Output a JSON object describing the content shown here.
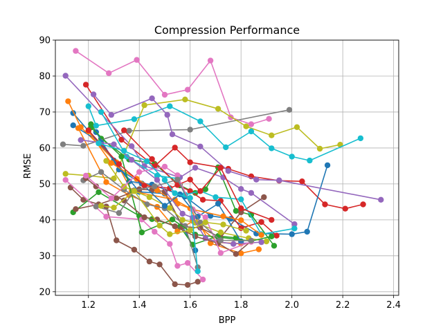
{
  "chart_data": {
    "type": "line",
    "title": "Compression Performance",
    "xlabel": "BPP",
    "ylabel": "RMSE",
    "xlim": [
      1.07,
      2.42
    ],
    "ylim": [
      19,
      90
    ],
    "xticks": [
      1.2,
      1.4,
      1.6,
      1.8,
      2.0,
      2.2,
      2.4
    ],
    "yticks": [
      20,
      30,
      40,
      50,
      60,
      70,
      80,
      90
    ],
    "xtick_labels": [
      "1.2",
      "1.4",
      "1.6",
      "1.8",
      "2.0",
      "2.2",
      "2.4"
    ],
    "ytick_labels": [
      "20",
      "30",
      "40",
      "50",
      "60",
      "70",
      "80",
      "90"
    ],
    "grid": true,
    "legend": "none",
    "series": [
      {
        "color": "#1f77b4",
        "points": [
          [
            1.14,
            69.7
          ],
          [
            1.3,
            56.5
          ],
          [
            1.4,
            47.8
          ],
          [
            1.5,
            47.3
          ],
          [
            1.62,
            31.5
          ]
        ]
      },
      {
        "color": "#ff7f0e",
        "points": [
          [
            1.12,
            73.0
          ],
          [
            1.17,
            65.8
          ],
          [
            1.31,
            56.0
          ],
          [
            1.37,
            48.0
          ],
          [
            1.54,
            45.6
          ],
          [
            1.6,
            43.2
          ],
          [
            1.68,
            33.5
          ],
          [
            1.8,
            30.7
          ],
          [
            1.87,
            31.8
          ]
        ]
      },
      {
        "color": "#2ca02c",
        "points": [
          [
            1.21,
            66.6
          ],
          [
            1.25,
            62.6
          ],
          [
            1.36,
            56.8
          ],
          [
            1.46,
            55.6
          ],
          [
            1.56,
            49.6
          ],
          [
            1.62,
            47.5
          ],
          [
            1.66,
            48.5
          ],
          [
            1.71,
            54.6
          ],
          [
            1.78,
            42.5
          ],
          [
            1.84,
            41.4
          ],
          [
            1.93,
            32.8
          ]
        ]
      },
      {
        "color": "#d62728",
        "points": [
          [
            1.19,
            77.6
          ],
          [
            1.33,
            62.3
          ],
          [
            1.46,
            54.9
          ],
          [
            1.54,
            60.1
          ],
          [
            1.6,
            56.0
          ],
          [
            1.75,
            54.2
          ],
          [
            1.84,
            52.1
          ],
          [
            1.95,
            50.9
          ],
          [
            2.04,
            50.7
          ],
          [
            2.13,
            44.3
          ],
          [
            2.21,
            43.1
          ],
          [
            2.28,
            44.3
          ]
        ]
      },
      {
        "color": "#9467bd",
        "points": [
          [
            1.11,
            80.1
          ],
          [
            1.37,
            60.5
          ],
          [
            1.42,
            55.0
          ],
          [
            1.56,
            51.8
          ],
          [
            1.62,
            54.5
          ],
          [
            1.73,
            51.8
          ],
          [
            1.8,
            48.6
          ],
          [
            1.84,
            47.5
          ],
          [
            2.01,
            38.8
          ]
        ]
      },
      {
        "color": "#8c564b",
        "points": [
          [
            1.13,
            49.0
          ],
          [
            1.18,
            45.6
          ],
          [
            1.27,
            43.7
          ],
          [
            1.31,
            34.3
          ],
          [
            1.38,
            31.7
          ],
          [
            1.44,
            28.4
          ],
          [
            1.48,
            27.6
          ],
          [
            1.54,
            22.1
          ],
          [
            1.59,
            21.9
          ],
          [
            1.63,
            22.8
          ]
        ]
      },
      {
        "color": "#e377c2",
        "points": [
          [
            1.15,
            87.0
          ],
          [
            1.28,
            80.8
          ],
          [
            1.39,
            84.5
          ],
          [
            1.5,
            74.8
          ],
          [
            1.59,
            76.2
          ],
          [
            1.68,
            84.3
          ],
          [
            1.76,
            68.5
          ],
          [
            1.84,
            66.6
          ],
          [
            1.91,
            68.1
          ]
        ]
      },
      {
        "color": "#7f7f7f",
        "points": [
          [
            1.1,
            61.0
          ],
          [
            1.18,
            60.6
          ],
          [
            1.36,
            64.8
          ],
          [
            1.6,
            65.1
          ],
          [
            1.99,
            70.6
          ]
        ]
      },
      {
        "color": "#bcbd22",
        "points": [
          [
            1.11,
            52.8
          ],
          [
            1.2,
            52.3
          ],
          [
            1.3,
            51.5
          ],
          [
            1.42,
            71.9
          ],
          [
            1.58,
            73.5
          ],
          [
            1.71,
            70.9
          ],
          [
            1.82,
            66.0
          ],
          [
            1.92,
            63.5
          ],
          [
            2.02,
            65.8
          ],
          [
            2.11,
            59.8
          ],
          [
            2.19,
            60.9
          ]
        ]
      },
      {
        "color": "#17becf",
        "points": [
          [
            1.2,
            71.6
          ],
          [
            1.23,
            66.2
          ],
          [
            1.38,
            68.0
          ],
          [
            1.52,
            71.6
          ],
          [
            1.64,
            67.4
          ],
          [
            1.74,
            60.2
          ],
          [
            1.84,
            64.6
          ],
          [
            1.92,
            59.9
          ],
          [
            2.0,
            57.6
          ],
          [
            2.07,
            56.5
          ],
          [
            2.27,
            62.7
          ]
        ]
      },
      {
        "color": "#1f77b4",
        "points": [
          [
            1.14,
            66.3
          ],
          [
            1.25,
            61.5
          ],
          [
            1.36,
            50.7
          ],
          [
            1.45,
            49.8
          ],
          [
            1.58,
            46.5
          ],
          [
            1.68,
            41.1
          ],
          [
            1.76,
            40.3
          ],
          [
            1.86,
            36.2
          ],
          [
            2.0,
            36.0
          ],
          [
            2.06,
            36.7
          ],
          [
            2.14,
            55.2
          ]
        ]
      },
      {
        "color": "#ff7f0e",
        "points": [
          [
            1.16,
            65.5
          ],
          [
            1.27,
            50.5
          ],
          [
            1.36,
            46.9
          ],
          [
            1.47,
            43.6
          ],
          [
            1.55,
            36.8
          ],
          [
            1.61,
            39.7
          ],
          [
            1.71,
            33.7
          ],
          [
            1.8,
            33.4
          ]
        ]
      },
      {
        "color": "#2ca02c",
        "points": [
          [
            1.14,
            42.1
          ],
          [
            1.24,
            47.7
          ],
          [
            1.4,
            41.1
          ],
          [
            1.45,
            40.2
          ],
          [
            1.56,
            38.1
          ],
          [
            1.61,
            33.1
          ],
          [
            1.71,
            35.5
          ],
          [
            1.78,
            35.0
          ]
        ]
      },
      {
        "color": "#d62728",
        "points": [
          [
            1.34,
            64.9
          ],
          [
            1.45,
            56.9
          ],
          [
            1.55,
            49.7
          ],
          [
            1.6,
            48.0
          ],
          [
            1.65,
            45.6
          ],
          [
            1.72,
            45.3
          ],
          [
            1.8,
            37.7
          ],
          [
            1.88,
            39.4
          ],
          [
            1.94,
            35.6
          ]
        ]
      },
      {
        "color": "#9467bd",
        "points": [
          [
            1.22,
            74.9
          ],
          [
            1.29,
            69.2
          ],
          [
            1.45,
            73.8
          ],
          [
            1.51,
            69.2
          ],
          [
            1.53,
            63.8
          ],
          [
            1.64,
            60.4
          ],
          [
            1.75,
            53.6
          ],
          [
            1.86,
            51.2
          ],
          [
            1.95,
            51.0
          ],
          [
            2.35,
            45.6
          ]
        ]
      },
      {
        "color": "#8c564b",
        "points": [
          [
            1.15,
            43.0
          ],
          [
            1.24,
            44.3
          ],
          [
            1.31,
            46.0
          ],
          [
            1.4,
            48.5
          ],
          [
            1.45,
            48.3
          ],
          [
            1.5,
            47.9
          ],
          [
            1.57,
            38.1
          ],
          [
            1.64,
            37.8
          ],
          [
            1.72,
            35.1
          ],
          [
            1.8,
            42.1
          ],
          [
            1.89,
            46.3
          ]
        ]
      },
      {
        "color": "#e377c2",
        "points": [
          [
            1.11,
            51.1
          ],
          [
            1.27,
            40.9
          ],
          [
            1.41,
            40.1
          ],
          [
            1.46,
            36.7
          ],
          [
            1.52,
            33.3
          ],
          [
            1.55,
            27.2
          ],
          [
            1.59,
            28.0
          ],
          [
            1.65,
            23.4
          ]
        ]
      },
      {
        "color": "#7f7f7f",
        "points": [
          [
            1.18,
            51.0
          ],
          [
            1.25,
            53.3
          ],
          [
            1.34,
            48.4
          ],
          [
            1.43,
            44.3
          ],
          [
            1.5,
            43.2
          ],
          [
            1.58,
            38.3
          ],
          [
            1.63,
            26.8
          ]
        ]
      },
      {
        "color": "#bcbd22",
        "points": [
          [
            1.27,
            56.4
          ],
          [
            1.34,
            49.2
          ],
          [
            1.44,
            46.3
          ],
          [
            1.52,
            43.3
          ],
          [
            1.57,
            40.0
          ],
          [
            1.62,
            39.2
          ],
          [
            1.72,
            36.5
          ],
          [
            1.83,
            34.9
          ],
          [
            1.9,
            34.0
          ]
        ]
      },
      {
        "color": "#17becf",
        "points": [
          [
            1.25,
            70.0
          ],
          [
            1.35,
            57.6
          ],
          [
            1.47,
            52.3
          ],
          [
            1.55,
            51.5
          ],
          [
            1.58,
            47.0
          ],
          [
            1.64,
            48.0
          ],
          [
            1.7,
            46.3
          ],
          [
            1.8,
            45.7
          ],
          [
            1.88,
            36.0
          ],
          [
            2.01,
            37.6
          ]
        ]
      },
      {
        "color": "#1f77b4",
        "points": [
          [
            1.23,
            64.4
          ],
          [
            1.32,
            54.0
          ],
          [
            1.41,
            50.1
          ],
          [
            1.5,
            43.9
          ],
          [
            1.56,
            47.1
          ],
          [
            1.63,
            40.9
          ],
          [
            1.71,
            44.5
          ],
          [
            1.8,
            34.0
          ]
        ]
      },
      {
        "color": "#ff7f0e",
        "points": [
          [
            1.2,
            64.6
          ],
          [
            1.29,
            55.8
          ],
          [
            1.39,
            51.4
          ],
          [
            1.47,
            48.2
          ],
          [
            1.55,
            44.5
          ],
          [
            1.61,
            42.9
          ],
          [
            1.73,
            41.0
          ],
          [
            1.8,
            39.9
          ],
          [
            1.88,
            35.8
          ]
        ]
      },
      {
        "color": "#2ca02c",
        "points": [
          [
            1.21,
            65.7
          ],
          [
            1.33,
            57.6
          ],
          [
            1.41,
            36.5
          ],
          [
            1.53,
            40.1
          ],
          [
            1.62,
            35.9
          ],
          [
            1.71,
            35.2
          ],
          [
            1.84,
            34.1
          ],
          [
            1.92,
            35.4
          ]
        ]
      },
      {
        "color": "#d62728",
        "points": [
          [
            1.2,
            64.9
          ],
          [
            1.32,
            55.5
          ],
          [
            1.42,
            49.5
          ],
          [
            1.52,
            48.8
          ],
          [
            1.6,
            51.2
          ],
          [
            1.64,
            48.0
          ],
          [
            1.72,
            54.5
          ],
          [
            1.8,
            43.2
          ],
          [
            1.92,
            40.0
          ]
        ]
      },
      {
        "color": "#9467bd",
        "points": [
          [
            1.17,
            62.2
          ],
          [
            1.3,
            61.0
          ],
          [
            1.37,
            56.7
          ],
          [
            1.47,
            51.1
          ],
          [
            1.57,
            41.7
          ],
          [
            1.61,
            40.6
          ],
          [
            1.66,
            34.9
          ],
          [
            1.71,
            33.9
          ],
          [
            1.77,
            33.3
          ],
          [
            1.88,
            33.8
          ]
        ]
      },
      {
        "color": "#8c564b",
        "points": [
          [
            1.19,
            51.6
          ],
          [
            1.23,
            49.3
          ],
          [
            1.34,
            45.4
          ],
          [
            1.42,
            40.7
          ],
          [
            1.47,
            40.1
          ],
          [
            1.54,
            38.2
          ],
          [
            1.62,
            35.4
          ],
          [
            1.71,
            33.5
          ],
          [
            1.78,
            30.5
          ],
          [
            1.84,
            34.1
          ]
        ]
      },
      {
        "color": "#e377c2",
        "points": [
          [
            1.19,
            52.3
          ],
          [
            1.29,
            46.0
          ],
          [
            1.4,
            53.3
          ],
          [
            1.5,
            54.8
          ],
          [
            1.55,
            52.4
          ],
          [
            1.61,
            42.9
          ],
          [
            1.66,
            40.7
          ],
          [
            1.72,
            30.8
          ],
          [
            1.84,
            33.9
          ]
        ]
      },
      {
        "color": "#7f7f7f",
        "points": [
          [
            1.23,
            43.7
          ],
          [
            1.32,
            41.9
          ],
          [
            1.38,
            48.2
          ],
          [
            1.46,
            49.3
          ],
          [
            1.55,
            51.2
          ],
          [
            1.64,
            39.2
          ],
          [
            1.72,
            34.3
          ],
          [
            1.84,
            34.2
          ]
        ]
      },
      {
        "color": "#bcbd22",
        "points": [
          [
            1.25,
            43.9
          ],
          [
            1.3,
            43.4
          ],
          [
            1.38,
            48.0
          ],
          [
            1.48,
            38.4
          ],
          [
            1.52,
            36.0
          ],
          [
            1.6,
            37.1
          ],
          [
            1.66,
            39.3
          ],
          [
            1.73,
            38.7
          ],
          [
            1.82,
            37.0
          ]
        ]
      },
      {
        "color": "#17becf",
        "points": [
          [
            1.24,
            61.3
          ],
          [
            1.34,
            59.2
          ],
          [
            1.43,
            56.3
          ],
          [
            1.5,
            51.1
          ],
          [
            1.54,
            47.4
          ],
          [
            1.6,
            46.1
          ],
          [
            1.63,
            25.7
          ]
        ]
      }
    ]
  }
}
